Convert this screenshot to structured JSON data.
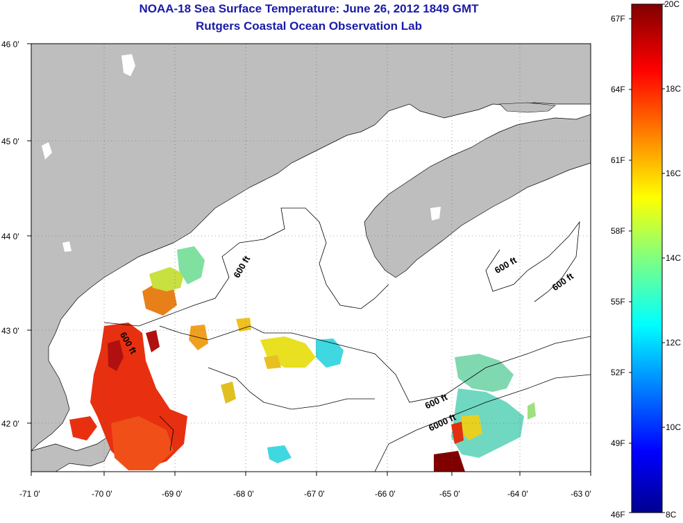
{
  "title": "NOAA-18 Sea Surface Temperature:  June 26, 2012 1849 GMT",
  "subtitle": "Rutgers Coastal Ocean Observation Lab",
  "map": {
    "lon_ticks": [
      "-71 0'",
      "-70 0'",
      "-69 0'",
      "-68 0'",
      "-67 0'",
      "-66 0'",
      "-65 0'",
      "-64 0'",
      "-63 0'"
    ],
    "lat_ticks": [
      "46 0'",
      "45 0'",
      "44 0'",
      "43 0'",
      "42 0'"
    ],
    "contour_labels": [
      "600 ft",
      "600 ft",
      "600 ft",
      "600 ft",
      "600 ft",
      "6000 ft"
    ],
    "land_color": "#bebebe",
    "ocean_color": "#ffffff"
  },
  "colorbar": {
    "celsius_labels": [
      "20C",
      "18C",
      "16C",
      "14C",
      "12C",
      "10C",
      "8C"
    ],
    "fahrenheit_labels": [
      "67F",
      "64F",
      "61F",
      "58F",
      "55F",
      "52F",
      "49F",
      "46F"
    ],
    "range_c": [
      8,
      20
    ],
    "colors": [
      "#00008f",
      "#0000ff",
      "#0080ff",
      "#00ffff",
      "#80ff80",
      "#ffff00",
      "#ff8000",
      "#ff0000",
      "#800000"
    ]
  }
}
